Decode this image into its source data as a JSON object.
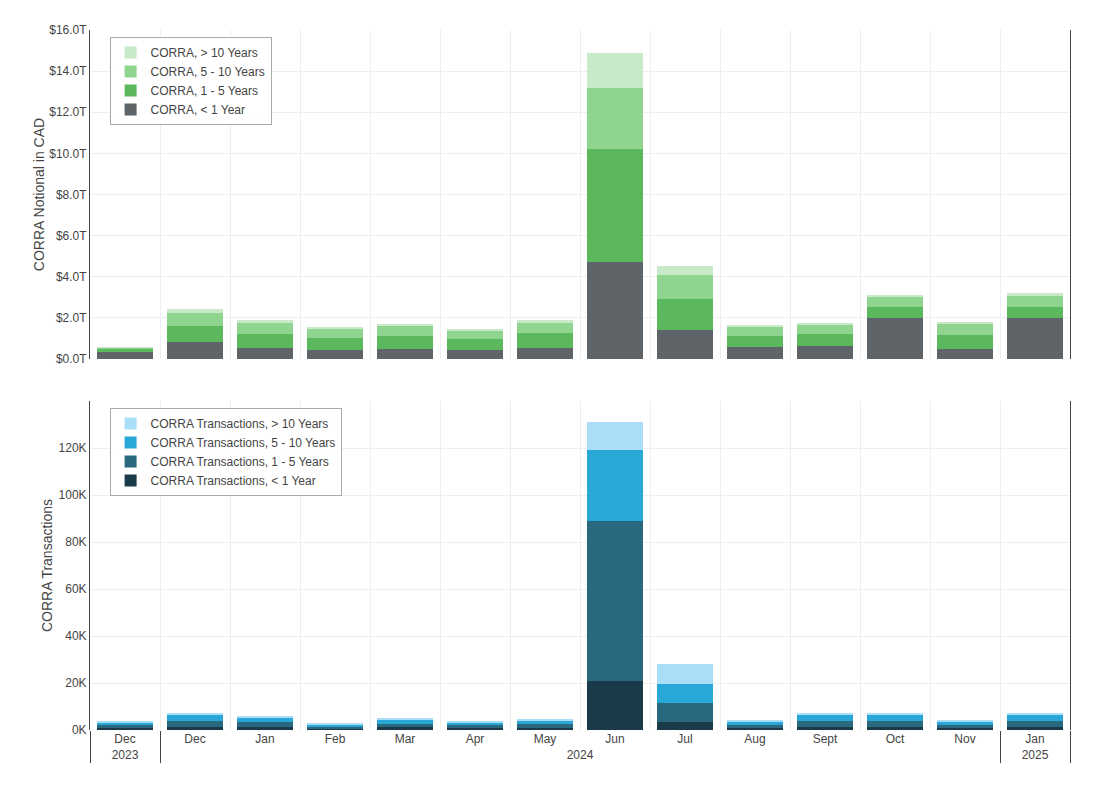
{
  "chart_data": [
    {
      "type": "bar",
      "stacked": true,
      "categories": [
        "Dec",
        "Jan",
        "Feb",
        "Mar",
        "Apr",
        "May",
        "Jun",
        "Jul",
        "Aug",
        "Sept",
        "Oct",
        "Nov",
        "Dec",
        "Jan"
      ],
      "category_groups": [
        "2023",
        "2024",
        "2024",
        "2024",
        "2024",
        "2024",
        "2024",
        "2024",
        "2024",
        "2024",
        "2024",
        "2024",
        "2024",
        "2025"
      ],
      "ylabel": "CORRA Notional in CAD",
      "ylim": [
        0,
        16
      ],
      "yticks": [
        {
          "value": 0,
          "label": "$0.0T"
        },
        {
          "value": 2,
          "label": "$2.0T"
        },
        {
          "value": 4,
          "label": "$4.0T"
        },
        {
          "value": 6,
          "label": "$6.0T"
        },
        {
          "value": 8,
          "label": "$8.0T"
        },
        {
          "value": 10,
          "label": "$10.0T"
        },
        {
          "value": 12,
          "label": "$12.0T"
        },
        {
          "value": 14,
          "label": "$14.0T"
        },
        {
          "value": 16,
          "label": "$16.0T"
        }
      ],
      "grid": true,
      "legend": "upper left",
      "series": [
        {
          "name": "CORRA, < 1 Year",
          "color": "#5f6468",
          "values": [
            0.35,
            0.55,
            0.45,
            0.5,
            0.45,
            0.55,
            4.7,
            1.4,
            0.6,
            0.65,
            2.0,
            0.5,
            0.85,
            2.0
          ]
        },
        {
          "name": "CORRA, 1 - 5 Years",
          "color": "#5cb85c",
          "values": [
            0.15,
            0.65,
            0.55,
            0.6,
            0.5,
            0.7,
            5.5,
            1.5,
            0.5,
            0.55,
            0.55,
            0.65,
            0.75,
            0.55
          ]
        },
        {
          "name": "CORRA, 5 - 10 Years",
          "color": "#8fd48f",
          "values": [
            0.05,
            0.55,
            0.45,
            0.5,
            0.4,
            0.5,
            3.0,
            1.2,
            0.45,
            0.45,
            0.45,
            0.55,
            0.65,
            0.5
          ]
        },
        {
          "name": "CORRA, > 10 Years",
          "color": "#c8eac8",
          "values": [
            0.02,
            0.15,
            0.1,
            0.12,
            0.1,
            0.15,
            1.7,
            0.4,
            0.12,
            0.12,
            0.12,
            0.12,
            0.18,
            0.14
          ]
        }
      ]
    },
    {
      "type": "bar",
      "stacked": true,
      "categories": [
        "Dec",
        "Jan",
        "Feb",
        "Mar",
        "Apr",
        "May",
        "Jun",
        "Jul",
        "Aug",
        "Sept",
        "Oct",
        "Nov",
        "Dec",
        "Jan"
      ],
      "category_groups": [
        "2023",
        "2024",
        "2024",
        "2024",
        "2024",
        "2024",
        "2024",
        "2024",
        "2024",
        "2024",
        "2024",
        "2024",
        "2024",
        "2025"
      ],
      "ylabel": "CORRA Transactions",
      "ylim": [
        0,
        140000
      ],
      "yticks": [
        {
          "value": 0,
          "label": "0K"
        },
        {
          "value": 20000,
          "label": "20K"
        },
        {
          "value": 40000,
          "label": "40K"
        },
        {
          "value": 60000,
          "label": "60K"
        },
        {
          "value": 80000,
          "label": "80K"
        },
        {
          "value": 100000,
          "label": "100K"
        },
        {
          "value": 120000,
          "label": "120K"
        }
      ],
      "grid": true,
      "legend": "upper left",
      "series": [
        {
          "name": "CORRA Transactions, < 1 Year",
          "color": "#1a3a4a",
          "values": [
            900,
            1400,
            500,
            1100,
            800,
            1000,
            21000,
            3500,
            700,
            1300,
            1200,
            700,
            1200,
            1200
          ]
        },
        {
          "name": "CORRA Transactions, 1 - 5 Years",
          "color": "#2a6880",
          "values": [
            1200,
            2000,
            900,
            1600,
            1200,
            1600,
            68000,
            8000,
            1500,
            2500,
            2500,
            1500,
            2500,
            2500
          ]
        },
        {
          "name": "CORRA Transactions, 5 - 10 Years",
          "color": "#29a8d8",
          "values": [
            1200,
            2000,
            900,
            1600,
            1200,
            1600,
            30000,
            8000,
            1500,
            2500,
            2500,
            1500,
            2500,
            2500
          ]
        },
        {
          "name": "CORRA Transactions, > 10 Years",
          "color": "#aaddf7",
          "values": [
            400,
            700,
            300,
            500,
            400,
            500,
            12000,
            8500,
            600,
            1000,
            1000,
            600,
            1000,
            1200
          ]
        }
      ]
    }
  ]
}
